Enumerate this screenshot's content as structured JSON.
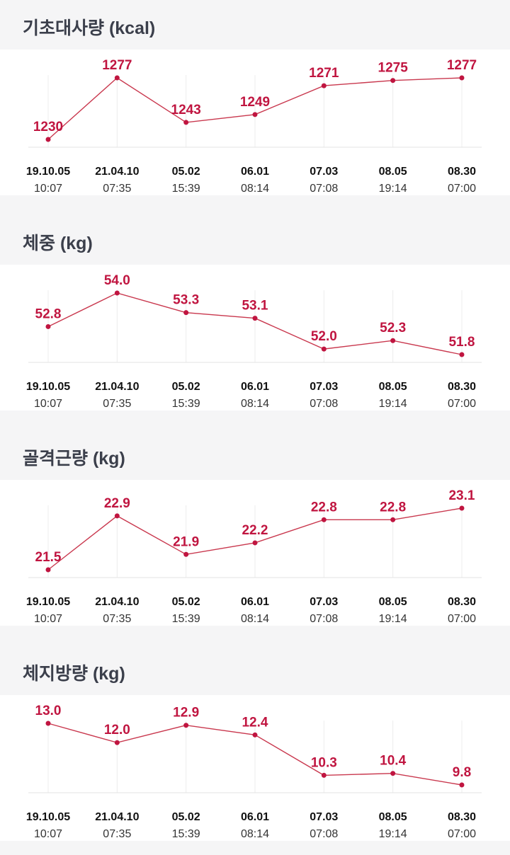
{
  "x_labels": [
    {
      "date": "19.10.05",
      "time": "10:07"
    },
    {
      "date": "21.04.10",
      "time": "07:35"
    },
    {
      "date": "05.02",
      "time": "15:39"
    },
    {
      "date": "06.01",
      "time": "08:14"
    },
    {
      "date": "07.03",
      "time": "07:08"
    },
    {
      "date": "08.05",
      "time": "19:14"
    },
    {
      "date": "08.30",
      "time": "07:00"
    }
  ],
  "sections": [
    {
      "title": "기초대사량 (kcal)"
    },
    {
      "title": "체중 (kg)"
    },
    {
      "title": "골격근량 (kg)"
    },
    {
      "title": "체지방량 (kg)"
    }
  ],
  "colors": {
    "accent": "#c01540",
    "line": "#c9384e",
    "title": "#3b3f4b"
  },
  "chart_data": [
    {
      "type": "line",
      "title": "기초대사량 (kcal)",
      "categories": [
        "19.10.05 10:07",
        "21.04.10 07:35",
        "05.02 15:39",
        "06.01 08:14",
        "07.03 07:08",
        "08.05 19:14",
        "08.30 07:00"
      ],
      "values": [
        1230,
        1277,
        1243,
        1249,
        1271,
        1275,
        1277
      ],
      "value_labels": [
        "1230",
        "1277",
        "1243",
        "1249",
        "1271",
        "1275",
        "1277"
      ],
      "grid": "vertical",
      "legend": "none"
    },
    {
      "type": "line",
      "title": "체중 (kg)",
      "categories": [
        "19.10.05 10:07",
        "21.04.10 07:35",
        "05.02 15:39",
        "06.01 08:14",
        "07.03 07:08",
        "08.05 19:14",
        "08.30 07:00"
      ],
      "values": [
        52.8,
        54.0,
        53.3,
        53.1,
        52.0,
        52.3,
        51.8
      ],
      "value_labels": [
        "52.8",
        "54.0",
        "53.3",
        "53.1",
        "52.0",
        "52.3",
        "51.8"
      ],
      "grid": "vertical",
      "legend": "none"
    },
    {
      "type": "line",
      "title": "골격근량 (kg)",
      "categories": [
        "19.10.05 10:07",
        "21.04.10 07:35",
        "05.02 15:39",
        "06.01 08:14",
        "07.03 07:08",
        "08.05 19:14",
        "08.30 07:00"
      ],
      "values": [
        21.5,
        22.9,
        21.9,
        22.2,
        22.8,
        22.8,
        23.1
      ],
      "value_labels": [
        "21.5",
        "22.9",
        "21.9",
        "22.2",
        "22.8",
        "22.8",
        "23.1"
      ],
      "grid": "vertical",
      "legend": "none"
    },
    {
      "type": "line",
      "title": "체지방량 (kg)",
      "categories": [
        "19.10.05 10:07",
        "21.04.10 07:35",
        "05.02 15:39",
        "06.01 08:14",
        "07.03 07:08",
        "08.05 19:14",
        "08.30 07:00"
      ],
      "values": [
        13.0,
        12.0,
        12.9,
        12.4,
        10.3,
        10.4,
        9.8
      ],
      "value_labels": [
        "13.0",
        "12.0",
        "12.9",
        "12.4",
        "10.3",
        "10.4",
        "9.8"
      ],
      "grid": "vertical",
      "legend": "none"
    }
  ]
}
